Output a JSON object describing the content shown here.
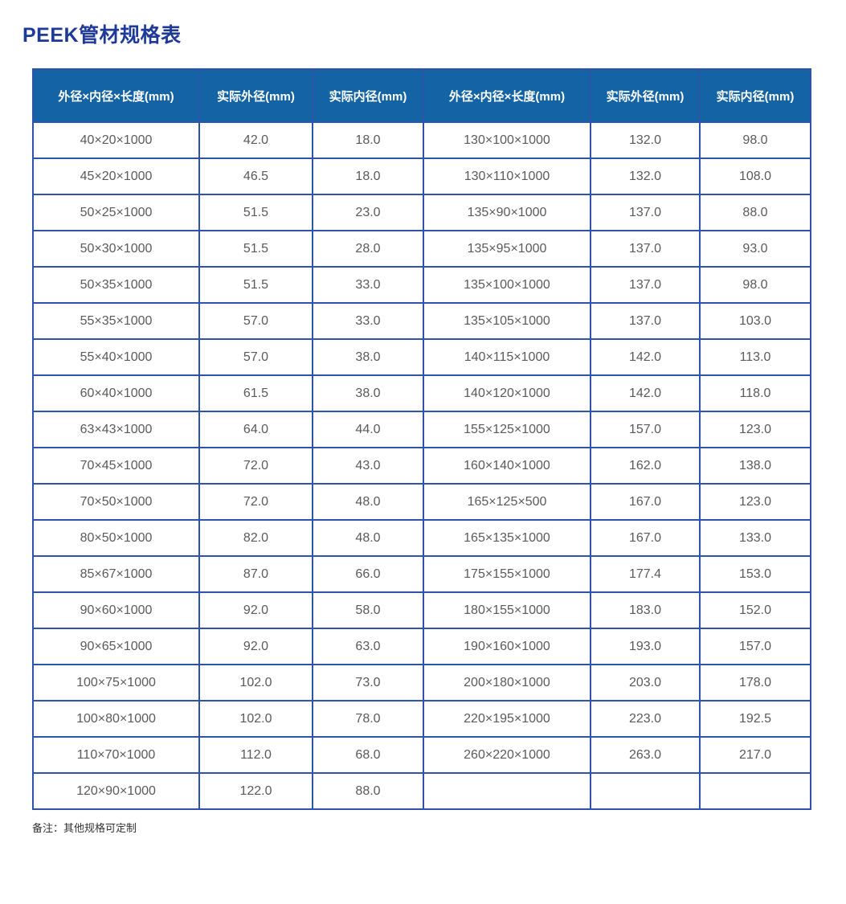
{
  "page": {
    "title": "PEEK管材规格表",
    "note": "备注：其他规格可定制"
  },
  "colors": {
    "title": "#1e3a99",
    "header_bg": "#1463a5",
    "header_text": "#ffffff",
    "border": "#2e53ab",
    "cell_text": "#595a5c",
    "note_text": "#333333"
  },
  "table": {
    "columns": [
      "外径×内径×长度(mm)",
      "实际外径(mm)",
      "实际内径(mm)",
      "外径×内径×长度(mm)",
      "实际外径(mm)",
      "实际内径(mm)"
    ],
    "rows": [
      [
        "40×20×1000",
        "42.0",
        "18.0",
        "130×100×1000",
        "132.0",
        "98.0"
      ],
      [
        "45×20×1000",
        "46.5",
        "18.0",
        "130×110×1000",
        "132.0",
        "108.0"
      ],
      [
        "50×25×1000",
        "51.5",
        "23.0",
        "135×90×1000",
        "137.0",
        "88.0"
      ],
      [
        "50×30×1000",
        "51.5",
        "28.0",
        "135×95×1000",
        "137.0",
        "93.0"
      ],
      [
        "50×35×1000",
        "51.5",
        "33.0",
        "135×100×1000",
        "137.0",
        "98.0"
      ],
      [
        "55×35×1000",
        "57.0",
        "33.0",
        "135×105×1000",
        "137.0",
        "103.0"
      ],
      [
        "55×40×1000",
        "57.0",
        "38.0",
        "140×115×1000",
        "142.0",
        "113.0"
      ],
      [
        "60×40×1000",
        "61.5",
        "38.0",
        "140×120×1000",
        "142.0",
        "118.0"
      ],
      [
        "63×43×1000",
        "64.0",
        "44.0",
        "155×125×1000",
        "157.0",
        "123.0"
      ],
      [
        "70×45×1000",
        "72.0",
        "43.0",
        "160×140×1000",
        "162.0",
        "138.0"
      ],
      [
        "70×50×1000",
        "72.0",
        "48.0",
        "165×125×500",
        "167.0",
        "123.0"
      ],
      [
        "80×50×1000",
        "82.0",
        "48.0",
        "165×135×1000",
        "167.0",
        "133.0"
      ],
      [
        "85×67×1000",
        "87.0",
        "66.0",
        "175×155×1000",
        "177.4",
        "153.0"
      ],
      [
        "90×60×1000",
        "92.0",
        "58.0",
        "180×155×1000",
        "183.0",
        "152.0"
      ],
      [
        "90×65×1000",
        "92.0",
        "63.0",
        "190×160×1000",
        "193.0",
        "157.0"
      ],
      [
        "100×75×1000",
        "102.0",
        "73.0",
        "200×180×1000",
        "203.0",
        "178.0"
      ],
      [
        "100×80×1000",
        "102.0",
        "78.0",
        "220×195×1000",
        "223.0",
        "192.5"
      ],
      [
        "110×70×1000",
        "112.0",
        "68.0",
        "260×220×1000",
        "263.0",
        "217.0"
      ],
      [
        "120×90×1000",
        "122.0",
        "88.0",
        "",
        "",
        ""
      ]
    ]
  }
}
